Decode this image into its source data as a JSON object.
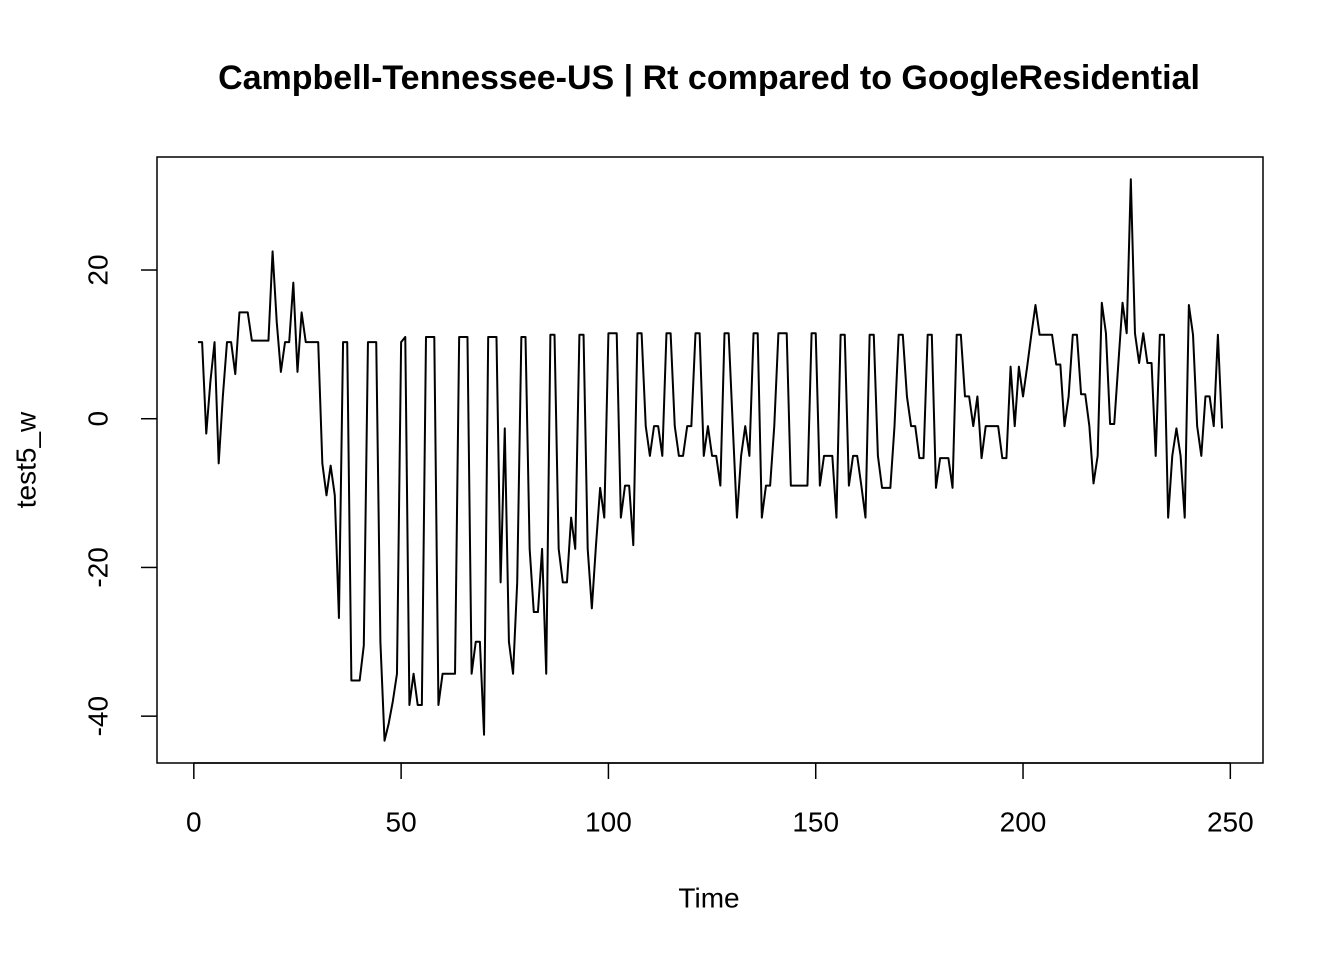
{
  "chart_data": {
    "type": "line",
    "title": "Campbell-Tennessee-US | Rt compared to GoogleResidential",
    "x_label": "Time",
    "y_label": "test5_w",
    "color": "#000000",
    "x": [
      1,
      2,
      3,
      4,
      5,
      6,
      7,
      8,
      9,
      10,
      11,
      12,
      13,
      14,
      15,
      16,
      17,
      18,
      19,
      20,
      21,
      22,
      23,
      24,
      25,
      26,
      27,
      28,
      29,
      30,
      31,
      32,
      33,
      34,
      35,
      36,
      37,
      38,
      39,
      40,
      41,
      42,
      43,
      44,
      45,
      46,
      47,
      48,
      49,
      50,
      51,
      52,
      53,
      54,
      55,
      56,
      57,
      58,
      59,
      60,
      61,
      62,
      63,
      64,
      65,
      66,
      67,
      68,
      69,
      70,
      71,
      72,
      73,
      74,
      75,
      76,
      77,
      78,
      79,
      80,
      81,
      82,
      83,
      84,
      85,
      86,
      87,
      88,
      89,
      90,
      91,
      92,
      93,
      94,
      95,
      96,
      97,
      98,
      99,
      100,
      101,
      102,
      103,
      104,
      105,
      106,
      107,
      108,
      109,
      110,
      111,
      112,
      113,
      114,
      115,
      116,
      117,
      118,
      119,
      120,
      121,
      122,
      123,
      124,
      125,
      126,
      127,
      128,
      129,
      130,
      131,
      132,
      133,
      134,
      135,
      136,
      137,
      138,
      139,
      140,
      141,
      142,
      143,
      144,
      145,
      146,
      147,
      148,
      149,
      150,
      151,
      152,
      153,
      154,
      155,
      156,
      157,
      158,
      159,
      160,
      161,
      162,
      163,
      164,
      165,
      166,
      167,
      168,
      169,
      170,
      171,
      172,
      173,
      174,
      175,
      176,
      177,
      178,
      179,
      180,
      181,
      182,
      183,
      184,
      185,
      186,
      187,
      188,
      189,
      190,
      191,
      192,
      193,
      194,
      195,
      196,
      197,
      198,
      199,
      200,
      201,
      202,
      203,
      204,
      205,
      206,
      207,
      208,
      209,
      210,
      211,
      212,
      213,
      214,
      215,
      216,
      217,
      218,
      219,
      220,
      221,
      222,
      223,
      224,
      225,
      226,
      227,
      228,
      229,
      230,
      231,
      232,
      233,
      234,
      235,
      236,
      237,
      238,
      239,
      240,
      241,
      242,
      243,
      244,
      245,
      246,
      247,
      248
    ],
    "values": [
      10.3,
      10.3,
      -2,
      5,
      10.3,
      -6,
      3,
      10.3,
      10.3,
      6,
      14.3,
      14.3,
      14.3,
      10.5,
      10.5,
      10.5,
      10.5,
      10.5,
      22.5,
      13,
      6.3,
      10.3,
      10.3,
      18.3,
      6.3,
      14.3,
      10.3,
      10.3,
      10.3,
      10.3,
      -6,
      -10.3,
      -6.3,
      -10.3,
      -26.8,
      10.3,
      10.3,
      -35.2,
      -35.2,
      -35.2,
      -30.5,
      10.3,
      10.3,
      10.3,
      -30,
      -43.3,
      -41,
      -38,
      -34.3,
      10.3,
      11,
      -38.5,
      -34.3,
      -38.5,
      -38.5,
      11,
      11,
      11,
      -38.5,
      -34.3,
      -34.3,
      -34.3,
      -34.3,
      11,
      11,
      11,
      -34.3,
      -30,
      -30,
      -42.5,
      11,
      11,
      11,
      -22,
      -1.3,
      -30,
      -34.3,
      -22,
      11,
      11,
      -17.5,
      -26,
      -26,
      -17.5,
      -34.3,
      11.3,
      11.3,
      -17.5,
      -22,
      -22,
      -13.3,
      -17.5,
      11.3,
      11.3,
      -17.5,
      -25.5,
      -17,
      -9.3,
      -13.3,
      11.5,
      11.5,
      11.5,
      -13.3,
      -9,
      -9,
      -17,
      11.5,
      11.5,
      -1,
      -5,
      -1,
      -1,
      -5,
      11.5,
      11.5,
      -1,
      -5,
      -5,
      -1,
      -1,
      11.5,
      11.5,
      -5,
      -1,
      -5,
      -5,
      -9,
      11.5,
      11.5,
      -1,
      -13.3,
      -5,
      -1,
      -5,
      11.5,
      11.5,
      -13.3,
      -9,
      -9,
      -1,
      11.5,
      11.5,
      11.5,
      -9,
      -9,
      -9,
      -9,
      -9,
      11.5,
      11.5,
      -9,
      -5,
      -5,
      -5,
      -13.3,
      11.3,
      11.3,
      -9,
      -5,
      -5,
      -9,
      -13.3,
      11.3,
      11.3,
      -5,
      -9.3,
      -9.3,
      -9.3,
      -1,
      11.3,
      11.3,
      3,
      -1,
      -1,
      -5.3,
      -5.3,
      11.3,
      11.3,
      -9.3,
      -5.3,
      -5.3,
      -5.3,
      -9.3,
      11.3,
      11.3,
      3,
      3,
      -1,
      3,
      -5.3,
      -1,
      -1,
      -1,
      -1,
      -5.3,
      -5.3,
      7,
      -1,
      7,
      3,
      7,
      11.3,
      15.3,
      11.3,
      11.3,
      11.3,
      11.3,
      7.3,
      7.3,
      -1,
      3,
      11.3,
      11.3,
      3.3,
      3.3,
      -1,
      -8.7,
      -5,
      15.6,
      11.5,
      -0.7,
      -0.7,
      7.5,
      15.6,
      11.5,
      32.2,
      11.5,
      7.5,
      11.5,
      7.5,
      7.5,
      -5,
      11.3,
      11.3,
      -13.3,
      -5,
      -1.3,
      -5,
      -13.3,
      15.3,
      11.3,
      -1,
      -5,
      3,
      3,
      -1,
      11.3,
      -1.3
    ],
    "xlim": [
      -8.88,
      257.88
    ],
    "xticks": [
      0,
      50,
      100,
      150,
      200,
      250
    ],
    "ylim": [
      -46.3,
      35.2
    ],
    "yticks": [
      -40,
      -20,
      0,
      20
    ]
  }
}
